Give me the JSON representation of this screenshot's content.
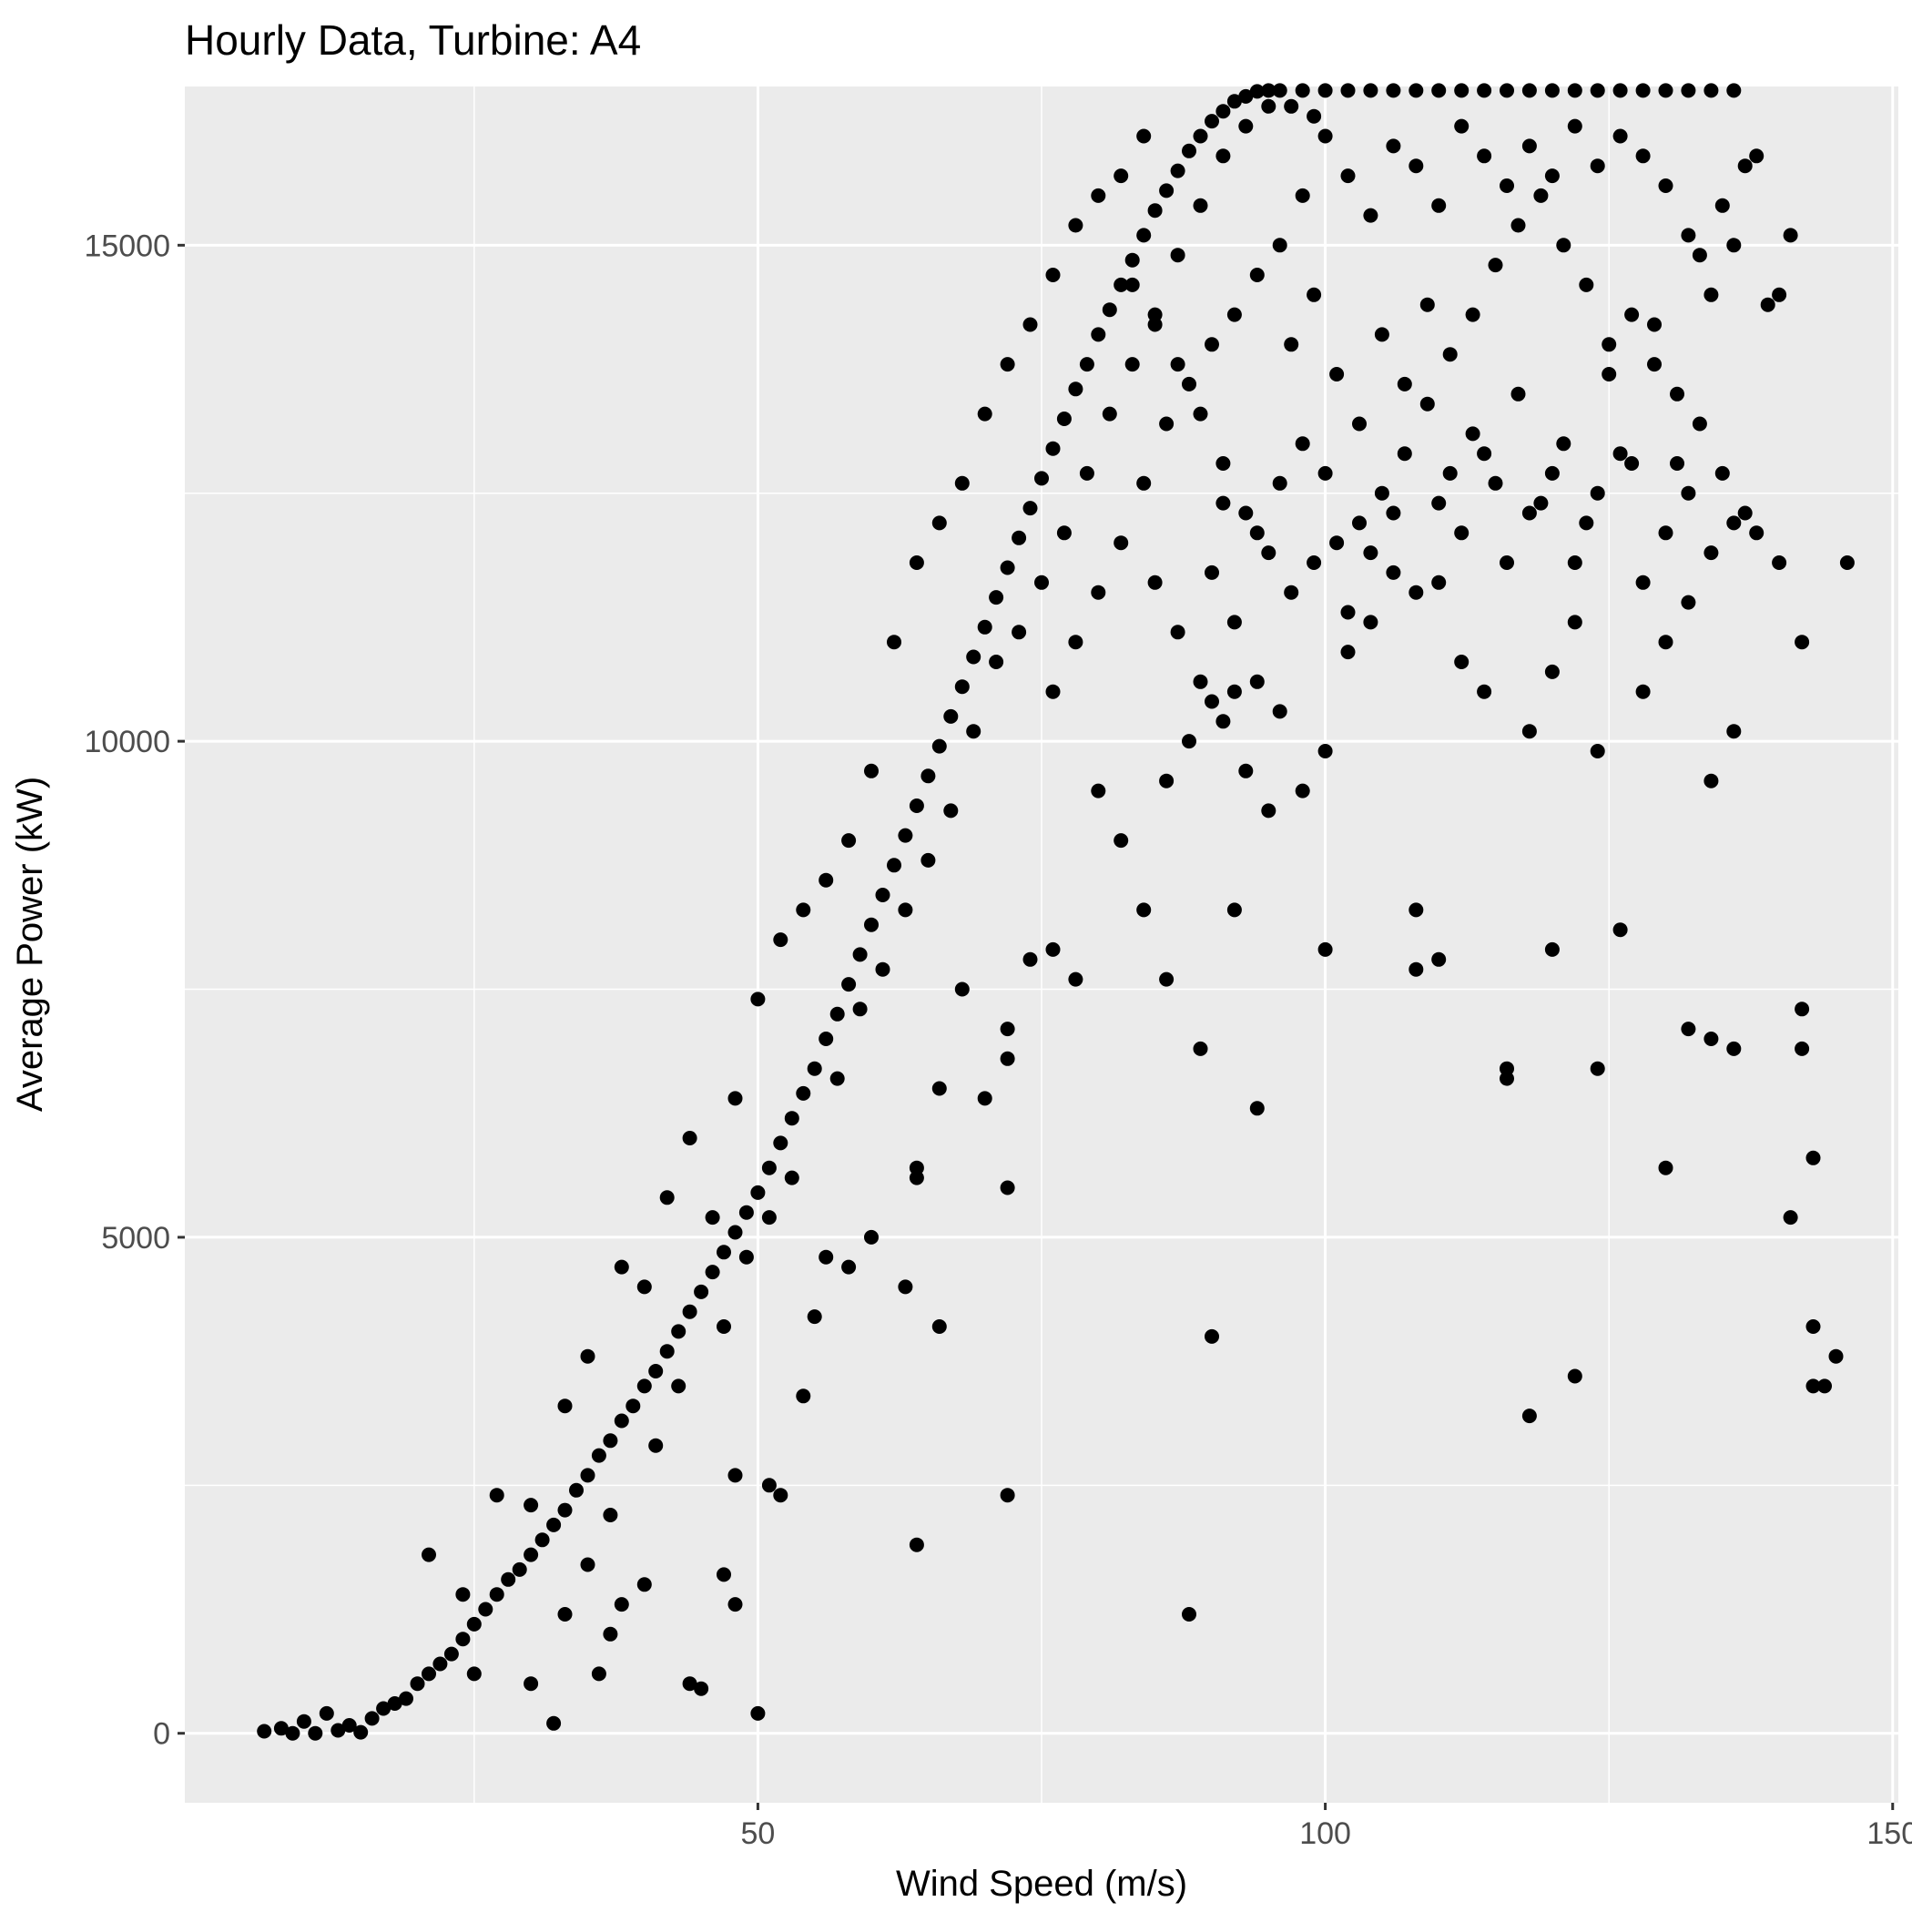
{
  "chart_data": {
    "type": "scatter",
    "title": "Hourly Data, Turbine: A4",
    "xlabel": "Wind Speed (m/s)",
    "ylabel": "Average Power (kW)",
    "xlim": [
      -0.5,
      150.5
    ],
    "ylim": [
      -700,
      16600
    ],
    "x_ticks": [
      50,
      100,
      150
    ],
    "x_tick_labels": [
      "50",
      "100",
      "150"
    ],
    "y_ticks": [
      0,
      5000,
      10000,
      15000
    ],
    "y_tick_labels": [
      "0",
      "5000",
      "10000",
      "15000"
    ],
    "grid": true,
    "legend": "none",
    "colors": {
      "panel": "#ebebeb",
      "grid": "#ffffff",
      "point": "#000000",
      "tick_text": "#4d4d4d",
      "text": "#000000"
    },
    "points": [
      [
        6.5,
        20
      ],
      [
        8,
        50
      ],
      [
        9,
        0
      ],
      [
        10,
        120
      ],
      [
        11,
        0
      ],
      [
        12,
        200
      ],
      [
        13,
        30
      ],
      [
        14,
        80
      ],
      [
        15,
        10
      ],
      [
        16,
        150
      ],
      [
        17,
        250
      ],
      [
        18,
        300
      ],
      [
        19,
        350
      ],
      [
        20,
        500
      ],
      [
        21,
        600
      ],
      [
        22,
        700
      ],
      [
        23,
        800
      ],
      [
        24,
        950
      ],
      [
        25,
        1100
      ],
      [
        26,
        1250
      ],
      [
        27,
        1400
      ],
      [
        28,
        1550
      ],
      [
        29,
        1650
      ],
      [
        30,
        1800
      ],
      [
        31,
        1950
      ],
      [
        32,
        2100
      ],
      [
        33,
        2250
      ],
      [
        34,
        2450
      ],
      [
        35,
        2600
      ],
      [
        36,
        2800
      ],
      [
        37,
        2950
      ],
      [
        38,
        3150
      ],
      [
        39,
        3300
      ],
      [
        40,
        3500
      ],
      [
        41,
        3650
      ],
      [
        42,
        3850
      ],
      [
        43,
        4050
      ],
      [
        44,
        4250
      ],
      [
        45,
        4450
      ],
      [
        46,
        4650
      ],
      [
        47,
        4850
      ],
      [
        48,
        5050
      ],
      [
        49,
        5250
      ],
      [
        50,
        5450
      ],
      [
        51,
        5700
      ],
      [
        52,
        5950
      ],
      [
        53,
        6200
      ],
      [
        54,
        6450
      ],
      [
        55,
        6700
      ],
      [
        56,
        7000
      ],
      [
        57,
        7250
      ],
      [
        58,
        7550
      ],
      [
        59,
        7850
      ],
      [
        60,
        8150
      ],
      [
        61,
        8450
      ],
      [
        62,
        8750
      ],
      [
        63,
        9050
      ],
      [
        64,
        9350
      ],
      [
        65,
        9650
      ],
      [
        66,
        9950
      ],
      [
        67,
        10250
      ],
      [
        68,
        10550
      ],
      [
        69,
        10850
      ],
      [
        70,
        11150
      ],
      [
        71,
        11450
      ],
      [
        72,
        11750
      ],
      [
        73,
        12050
      ],
      [
        74,
        12350
      ],
      [
        75,
        12650
      ],
      [
        76,
        12950
      ],
      [
        77,
        13250
      ],
      [
        78,
        13550
      ],
      [
        79,
        13800
      ],
      [
        80,
        14100
      ],
      [
        81,
        14350
      ],
      [
        82,
        14600
      ],
      [
        83,
        14850
      ],
      [
        84,
        15100
      ],
      [
        85,
        15350
      ],
      [
        86,
        15550
      ],
      [
        87,
        15750
      ],
      [
        88,
        15950
      ],
      [
        89,
        16100
      ],
      [
        90,
        16250
      ],
      [
        91,
        16350
      ],
      [
        92,
        16450
      ],
      [
        93,
        16500
      ],
      [
        94,
        16550
      ],
      [
        95,
        16560
      ],
      [
        96,
        16560
      ],
      [
        98,
        16560
      ],
      [
        100,
        16560
      ],
      [
        102,
        16560
      ],
      [
        104,
        16560
      ],
      [
        106,
        16560
      ],
      [
        108,
        16560
      ],
      [
        110,
        16560
      ],
      [
        112,
        16560
      ],
      [
        114,
        16560
      ],
      [
        116,
        16560
      ],
      [
        118,
        16560
      ],
      [
        120,
        16560
      ],
      [
        122,
        16560
      ],
      [
        124,
        16560
      ],
      [
        126,
        16560
      ],
      [
        128,
        16560
      ],
      [
        130,
        16560
      ],
      [
        132,
        16560
      ],
      [
        134,
        16560
      ],
      [
        136,
        16560
      ],
      [
        21,
        1800
      ],
      [
        24,
        1400
      ],
      [
        27,
        2400
      ],
      [
        30,
        2300
      ],
      [
        33,
        3300
      ],
      [
        35,
        3800
      ],
      [
        38,
        4700
      ],
      [
        40,
        4500
      ],
      [
        42,
        5400
      ],
      [
        44,
        6000
      ],
      [
        46,
        5200
      ],
      [
        48,
        6400
      ],
      [
        50,
        7400
      ],
      [
        52,
        8000
      ],
      [
        54,
        8300
      ],
      [
        56,
        8600
      ],
      [
        58,
        9000
      ],
      [
        60,
        9700
      ],
      [
        62,
        11000
      ],
      [
        64,
        11800
      ],
      [
        66,
        12200
      ],
      [
        68,
        12600
      ],
      [
        70,
        13300
      ],
      [
        72,
        13800
      ],
      [
        74,
        14200
      ],
      [
        76,
        14700
      ],
      [
        78,
        15200
      ],
      [
        80,
        15500
      ],
      [
        82,
        15700
      ],
      [
        84,
        16100
      ],
      [
        33,
        1200
      ],
      [
        37,
        2200
      ],
      [
        41,
        2900
      ],
      [
        43,
        3500
      ],
      [
        47,
        4100
      ],
      [
        49,
        4800
      ],
      [
        51,
        5200
      ],
      [
        53,
        5600
      ],
      [
        57,
        6600
      ],
      [
        59,
        7300
      ],
      [
        61,
        7700
      ],
      [
        63,
        8300
      ],
      [
        65,
        8800
      ],
      [
        67,
        9300
      ],
      [
        69,
        10100
      ],
      [
        71,
        10800
      ],
      [
        73,
        11100
      ],
      [
        75,
        11600
      ],
      [
        77,
        12100
      ],
      [
        79,
        12700
      ],
      [
        81,
        13300
      ],
      [
        83,
        13800
      ],
      [
        85,
        14300
      ],
      [
        87,
        14900
      ],
      [
        89,
        15400
      ],
      [
        91,
        15900
      ],
      [
        93,
        16200
      ],
      [
        95,
        16400
      ],
      [
        97,
        16400
      ],
      [
        99,
        16300
      ],
      [
        25,
        600
      ],
      [
        30,
        500
      ],
      [
        35,
        1700
      ],
      [
        32,
        100
      ],
      [
        36,
        600
      ],
      [
        37,
        1000
      ],
      [
        38,
        1300
      ],
      [
        40,
        1500
      ],
      [
        44,
        500
      ],
      [
        45,
        450
      ],
      [
        47,
        1600
      ],
      [
        48,
        1300
      ],
      [
        48,
        2600
      ],
      [
        50,
        200
      ],
      [
        51,
        2500
      ],
      [
        52,
        2400
      ],
      [
        54,
        3400
      ],
      [
        55,
        4200
      ],
      [
        58,
        4700
      ],
      [
        56,
        4800
      ],
      [
        60,
        5000
      ],
      [
        63,
        4500
      ],
      [
        64,
        5600
      ],
      [
        64,
        5700
      ],
      [
        66,
        6500
      ],
      [
        68,
        7500
      ],
      [
        70,
        6400
      ],
      [
        72,
        5500
      ],
      [
        72,
        2400
      ],
      [
        66,
        4100
      ],
      [
        64,
        1900
      ],
      [
        72,
        6800
      ],
      [
        72,
        7100
      ],
      [
        74,
        7800
      ],
      [
        76,
        7900
      ],
      [
        78,
        7600
      ],
      [
        80,
        9500
      ],
      [
        82,
        9000
      ],
      [
        84,
        8300
      ],
      [
        86,
        9600
      ],
      [
        86,
        7600
      ],
      [
        88,
        10000
      ],
      [
        90,
        10400
      ],
      [
        92,
        10500
      ],
      [
        92,
        8300
      ],
      [
        94,
        10600
      ],
      [
        94,
        6300
      ],
      [
        96,
        10300
      ],
      [
        98,
        9500
      ],
      [
        100,
        9900
      ],
      [
        100,
        7900
      ],
      [
        102,
        10900
      ],
      [
        104,
        11200
      ],
      [
        106,
        11700
      ],
      [
        108,
        8300
      ],
      [
        108,
        7700
      ],
      [
        110,
        11600
      ],
      [
        110,
        7800
      ],
      [
        112,
        10800
      ],
      [
        114,
        10500
      ],
      [
        116,
        6600
      ],
      [
        116,
        6700
      ],
      [
        118,
        10100
      ],
      [
        118,
        3200
      ],
      [
        120,
        10700
      ],
      [
        120,
        7900
      ],
      [
        122,
        11200
      ],
      [
        122,
        3600
      ],
      [
        124,
        9900
      ],
      [
        124,
        6700
      ],
      [
        126,
        8100
      ],
      [
        128,
        10500
      ],
      [
        130,
        11000
      ],
      [
        130,
        5700
      ],
      [
        132,
        11400
      ],
      [
        132,
        7100
      ],
      [
        134,
        9600
      ],
      [
        134,
        7000
      ],
      [
        136,
        10100
      ],
      [
        136,
        6900
      ],
      [
        138,
        12100
      ],
      [
        140,
        11800
      ],
      [
        142,
        11000
      ],
      [
        142,
        6900
      ],
      [
        142,
        7300
      ],
      [
        143,
        3500
      ],
      [
        143,
        5800
      ],
      [
        143,
        4100
      ],
      [
        144,
        3500
      ],
      [
        145,
        3800
      ],
      [
        146,
        11800
      ],
      [
        141,
        5200
      ],
      [
        137,
        12300
      ],
      [
        135,
        12700
      ],
      [
        133,
        13200
      ],
      [
        131,
        12800
      ],
      [
        129,
        13800
      ],
      [
        127,
        14300
      ],
      [
        125,
        14000
      ],
      [
        123,
        14600
      ],
      [
        121,
        15000
      ],
      [
        119,
        15500
      ],
      [
        117,
        15200
      ],
      [
        115,
        14800
      ],
      [
        113,
        14300
      ],
      [
        111,
        13900
      ],
      [
        109,
        13400
      ],
      [
        107,
        12900
      ],
      [
        105,
        12500
      ],
      [
        103,
        12200
      ],
      [
        101,
        12000
      ],
      [
        99,
        11800
      ],
      [
        97,
        11500
      ],
      [
        95,
        11900
      ],
      [
        93,
        12300
      ],
      [
        91,
        12800
      ],
      [
        89,
        13300
      ],
      [
        87,
        13800
      ],
      [
        85,
        14200
      ],
      [
        83,
        14600
      ],
      [
        97,
        14000
      ],
      [
        99,
        14500
      ],
      [
        101,
        13700
      ],
      [
        103,
        13200
      ],
      [
        105,
        14100
      ],
      [
        107,
        13600
      ],
      [
        109,
        14400
      ],
      [
        111,
        12700
      ],
      [
        113,
        13100
      ],
      [
        115,
        12600
      ],
      [
        117,
        13500
      ],
      [
        119,
        12400
      ],
      [
        121,
        13000
      ],
      [
        123,
        12200
      ],
      [
        125,
        13700
      ],
      [
        127,
        12800
      ],
      [
        129,
        14200
      ],
      [
        131,
        13500
      ],
      [
        133,
        14900
      ],
      [
        135,
        15400
      ],
      [
        137,
        15800
      ],
      [
        138,
        15900
      ],
      [
        140,
        14500
      ],
      [
        141,
        15100
      ],
      [
        139,
        14400
      ],
      [
        136,
        15000
      ],
      [
        134,
        14500
      ],
      [
        132,
        15100
      ],
      [
        130,
        15600
      ],
      [
        128,
        15900
      ],
      [
        126,
        16100
      ],
      [
        124,
        15800
      ],
      [
        122,
        16200
      ],
      [
        120,
        15700
      ],
      [
        118,
        16000
      ],
      [
        116,
        15600
      ],
      [
        114,
        15900
      ],
      [
        112,
        16200
      ],
      [
        110,
        15400
      ],
      [
        108,
        15800
      ],
      [
        106,
        16000
      ],
      [
        104,
        15300
      ],
      [
        102,
        15700
      ],
      [
        100,
        16100
      ],
      [
        98,
        15500
      ],
      [
        96,
        15000
      ],
      [
        94,
        14700
      ],
      [
        92,
        14300
      ],
      [
        90,
        14000
      ],
      [
        88,
        13600
      ],
      [
        86,
        13200
      ],
      [
        84,
        12600
      ],
      [
        82,
        12000
      ],
      [
        80,
        11500
      ],
      [
        78,
        11000
      ],
      [
        76,
        10500
      ],
      [
        90,
        11700
      ],
      [
        92,
        11200
      ],
      [
        94,
        12100
      ],
      [
        96,
        12600
      ],
      [
        98,
        13000
      ],
      [
        100,
        12700
      ],
      [
        102,
        11300
      ],
      [
        104,
        11900
      ],
      [
        106,
        12300
      ],
      [
        108,
        11500
      ],
      [
        110,
        12400
      ],
      [
        112,
        12100
      ],
      [
        114,
        12900
      ],
      [
        116,
        11800
      ],
      [
        118,
        12300
      ],
      [
        120,
        12700
      ],
      [
        122,
        11800
      ],
      [
        124,
        12500
      ],
      [
        126,
        12900
      ],
      [
        128,
        11600
      ],
      [
        130,
        12100
      ],
      [
        132,
        12500
      ],
      [
        134,
        11900
      ],
      [
        136,
        12200
      ],
      [
        87,
        11100
      ],
      [
        89,
        10600
      ],
      [
        91,
        10200
      ],
      [
        93,
        9700
      ],
      [
        95,
        9300
      ],
      [
        89,
        6900
      ],
      [
        90,
        4000
      ],
      [
        88,
        1200
      ],
      [
        91,
        12400
      ],
      [
        85,
        11600
      ]
    ]
  }
}
